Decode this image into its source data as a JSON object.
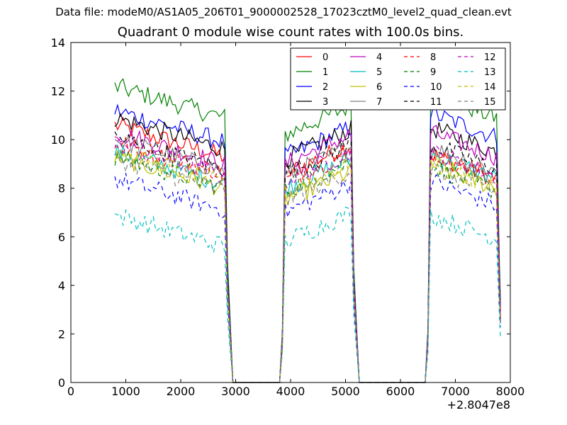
{
  "suptitle": "Data file: modeM0/AS1A05_206T01_9000002528_17023cztM0_level2_quad_clean.evt",
  "chart_data": {
    "type": "line",
    "title": "Quadrant 0 module wise count rates with 100.0s bins.",
    "xlabel": "",
    "ylabel": "",
    "x_offset_label": "+2.8047e8",
    "xlim": [
      0,
      8000
    ],
    "ylim": [
      0,
      14
    ],
    "xticks": [
      0,
      1000,
      2000,
      3000,
      4000,
      5000,
      6000,
      7000,
      8000
    ],
    "yticks": [
      0,
      2,
      4,
      6,
      8,
      10,
      12,
      14
    ],
    "grid": false,
    "legend_position": "top-right",
    "legend_columns": 4,
    "x": [
      800,
      2900,
      3000,
      3100,
      3200,
      3300,
      3400,
      3500,
      3600,
      3700,
      3800,
      3900,
      5200,
      5300,
      5400,
      5500,
      5600,
      5700,
      5800,
      5900,
      6000,
      6100,
      6200,
      6300,
      6400,
      7800
    ],
    "segments": [
      {
        "x_start": 800,
        "x_end": 2800,
        "step": 50
      },
      {
        "x_start": 3900,
        "x_end": 5100,
        "step": 50
      },
      {
        "x_start": 6550,
        "x_end": 7750,
        "step": 50
      }
    ],
    "series": [
      {
        "name": "0",
        "color": "#ff0000",
        "dash": "solid",
        "level": [
          9.7,
          9.0,
          8.7
        ]
      },
      {
        "name": "1",
        "color": "#008000",
        "dash": "solid",
        "level": [
          11.3,
          10.6,
          11.2
        ]
      },
      {
        "name": "2",
        "color": "#0000ff",
        "dash": "solid",
        "level": [
          10.3,
          9.7,
          10.4
        ]
      },
      {
        "name": "3",
        "color": "#000000",
        "dash": "solid",
        "level": [
          10.0,
          9.6,
          9.8
        ]
      },
      {
        "name": "4",
        "color": "#bf00bf",
        "dash": "solid",
        "level": [
          9.4,
          9.4,
          9.6
        ]
      },
      {
        "name": "5",
        "color": "#00bfbf",
        "dash": "solid",
        "level": [
          8.6,
          8.4,
          8.7
        ]
      },
      {
        "name": "6",
        "color": "#bfbf00",
        "dash": "solid",
        "level": [
          8.4,
          7.9,
          8.3
        ]
      },
      {
        "name": "7",
        "color": "#808080",
        "dash": "solid",
        "level": [
          9.1,
          8.9,
          9.0
        ]
      },
      {
        "name": "8",
        "color": "#ff0000",
        "dash": "dashed",
        "level": [
          9.0,
          8.7,
          8.7
        ]
      },
      {
        "name": "9",
        "color": "#008000",
        "dash": "dashed",
        "level": [
          8.4,
          8.3,
          8.2
        ]
      },
      {
        "name": "10",
        "color": "#0000ff",
        "dash": "dashed",
        "level": [
          7.5,
          7.4,
          7.6
        ]
      },
      {
        "name": "11",
        "color": "#000000",
        "dash": "dashed",
        "level": [
          9.2,
          9.0,
          9.1
        ]
      },
      {
        "name": "12",
        "color": "#bf00bf",
        "dash": "dashed",
        "level": [
          8.9,
          8.7,
          8.8
        ]
      },
      {
        "name": "13",
        "color": "#00bfbf",
        "dash": "dashed",
        "level": [
          6.0,
          6.2,
          6.2
        ]
      },
      {
        "name": "14",
        "color": "#bfbf00",
        "dash": "dashed",
        "level": [
          8.6,
          8.2,
          8.3
        ]
      },
      {
        "name": "15",
        "color": "#808080",
        "dash": "dashed",
        "level": [
          8.3,
          7.9,
          8.1
        ]
      }
    ]
  }
}
